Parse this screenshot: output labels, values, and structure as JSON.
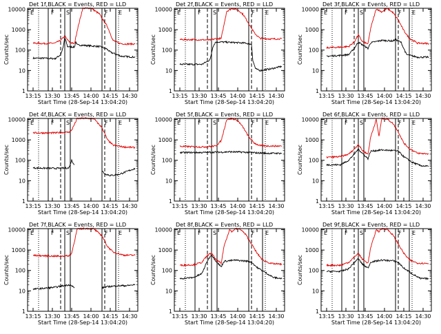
{
  "figure": {
    "ylabel": "Counts/sec",
    "xlabel": "Start Time (28-Sep-14 13:04:20)",
    "y_ticks": [
      "10000",
      "1000",
      "100",
      "10",
      "1"
    ],
    "x_ticks": [
      "13:15",
      "13:30",
      "13:45",
      "14:00",
      "14:15",
      "14:30"
    ],
    "colors": {
      "events": "#000000",
      "lld": "#e00000",
      "frame": "#000000"
    }
  },
  "chart_data": [
    {
      "type": "line",
      "title": "Det 1f,BLACK = Events, RED = LLD",
      "ylim": [
        1,
        10000
      ],
      "yscale": "log",
      "markers": [
        "E",
        "F",
        "S",
        "F",
        "E"
      ],
      "series": [
        {
          "name": "Events",
          "x": [
            4,
            12,
            20,
            24,
            26,
            27,
            29,
            34,
            35,
            36,
            52,
            57,
            60,
            68,
            78
          ],
          "y": [
            40,
            40,
            38,
            60,
            150,
            420,
            150,
            140,
            260,
            180,
            150,
            120,
            80,
            50,
            45
          ]
        },
        {
          "name": "LLD",
          "x": [
            4,
            12,
            20,
            24,
            27,
            30,
            34,
            36,
            40,
            46,
            52,
            58,
            62,
            66,
            70,
            78
          ],
          "y": [
            220,
            210,
            220,
            300,
            480,
            260,
            200,
            900,
            11000,
            11500,
            6000,
            1400,
            300,
            220,
            200,
            200
          ]
        }
      ]
    },
    {
      "type": "line",
      "title": "Det 2f,BLACK = Events, RED = LLD",
      "ylim": [
        1,
        10000
      ],
      "yscale": "log",
      "markers": [
        "E",
        "F",
        "S",
        "F",
        "E"
      ],
      "series": [
        {
          "name": "Events",
          "x": [
            4,
            20,
            24,
            26,
            28,
            30,
            34,
            40,
            52,
            56,
            57,
            59,
            62,
            70,
            78
          ],
          "y": [
            20,
            20,
            28,
            35,
            150,
            250,
            250,
            240,
            220,
            190,
            30,
            12,
            10,
            12,
            16
          ]
        },
        {
          "name": "LLD",
          "x": [
            4,
            20,
            26,
            30,
            34,
            38,
            42,
            46,
            50,
            54,
            58,
            62,
            70,
            78
          ],
          "y": [
            330,
            320,
            310,
            360,
            370,
            8000,
            11000,
            9500,
            5500,
            2000,
            700,
            380,
            350,
            360
          ]
        }
      ]
    },
    {
      "type": "line",
      "title": "Det 3f,BLACK = Events, RED = LLD",
      "ylim": [
        1,
        10000
      ],
      "yscale": "log",
      "markers": [
        "E",
        "F",
        "S",
        "F",
        "E"
      ],
      "series": [
        {
          "name": "Events",
          "x": [
            4,
            14,
            20,
            24,
            27,
            30,
            34,
            36,
            44,
            52,
            54,
            58,
            62,
            70,
            78
          ],
          "y": [
            50,
            55,
            60,
            120,
            250,
            180,
            120,
            230,
            300,
            280,
            330,
            240,
            60,
            45,
            45
          ]
        },
        {
          "name": "LLD",
          "x": [
            4,
            14,
            20,
            24,
            27,
            30,
            34,
            36,
            40,
            44,
            48,
            52,
            56,
            60,
            64,
            70,
            78
          ],
          "y": [
            130,
            140,
            150,
            250,
            550,
            260,
            200,
            1200,
            10500,
            7500,
            11000,
            7000,
            3000,
            900,
            380,
            220,
            210
          ]
        }
      ]
    },
    {
      "type": "line",
      "title": "Det 4f,BLACK = Events, RED = LLD",
      "ylim": [
        1,
        10000
      ],
      "yscale": "log",
      "markers": [
        "E",
        "F",
        "S",
        "F",
        "E"
      ],
      "series": [
        {
          "name": "Events",
          "x": [
            4,
            20,
            30,
            32,
            34
          ],
          "y": [
            42,
            40,
            42,
            100,
            60
          ]
        },
        {
          "name": "Events (recovered)",
          "x": [
            54,
            56,
            60,
            66,
            70,
            78
          ],
          "y": [
            30,
            22,
            18,
            20,
            25,
            40
          ]
        },
        {
          "name": "LLD",
          "x": [
            4,
            20,
            30,
            32,
            36,
            42,
            48,
            54,
            58,
            62,
            70,
            78
          ],
          "y": [
            2200,
            2200,
            2400,
            3000,
            11000,
            11500,
            11000,
            4000,
            1000,
            550,
            450,
            420
          ]
        }
      ]
    },
    {
      "type": "line",
      "title": "Det 5f,BLACK = Events, RED = LLD",
      "ylim": [
        1,
        10000
      ],
      "yscale": "log",
      "markers": [
        "E",
        "F",
        "S",
        "F",
        "E"
      ],
      "series": [
        {
          "name": "Events",
          "x": [
            4,
            20,
            30,
            34,
            40,
            50,
            56,
            60,
            68,
            78
          ],
          "y": [
            240,
            240,
            250,
            250,
            260,
            250,
            240,
            230,
            220,
            220
          ]
        },
        {
          "name": "LLD",
          "x": [
            4,
            20,
            30,
            34,
            38,
            42,
            46,
            50,
            54,
            58,
            62,
            70,
            78
          ],
          "y": [
            480,
            450,
            500,
            900,
            10000,
            11000,
            9000,
            4000,
            1400,
            700,
            520,
            500,
            500
          ]
        }
      ]
    },
    {
      "type": "line",
      "title": "Det 6f,BLACK = Events, RED = LLD",
      "ylim": [
        1,
        10000
      ],
      "yscale": "log",
      "markers": [
        "E",
        "F",
        "S",
        "F",
        "E"
      ],
      "series": [
        {
          "name": "Events",
          "x": [
            4,
            14,
            20,
            24,
            27,
            30,
            34,
            36,
            44,
            52,
            56,
            60,
            66,
            72,
            78
          ],
          "y": [
            60,
            60,
            100,
            200,
            350,
            220,
            120,
            280,
            320,
            300,
            280,
            150,
            80,
            55,
            50
          ]
        },
        {
          "name": "LLD",
          "x": [
            4,
            14,
            20,
            24,
            27,
            30,
            34,
            36,
            40,
            42,
            44,
            48,
            52,
            56,
            60,
            64,
            70,
            78
          ],
          "y": [
            140,
            150,
            200,
            350,
            600,
            300,
            200,
            1400,
            10000,
            1500,
            11000,
            10500,
            6500,
            2500,
            700,
            380,
            220,
            210
          ]
        }
      ]
    },
    {
      "type": "line",
      "title": "Det 7f,BLACK = Events, RED = LLD",
      "ylim": [
        1,
        10000
      ],
      "yscale": "log",
      "markers": [
        "E",
        "F",
        "S",
        "F",
        "E"
      ],
      "series": [
        {
          "name": "Events",
          "x": [
            4,
            20,
            30,
            34
          ],
          "y": [
            12,
            15,
            20,
            15
          ]
        },
        {
          "name": "Events (recovered)",
          "x": [
            54,
            58,
            66,
            72,
            78
          ],
          "y": [
            14,
            16,
            18,
            18,
            20
          ]
        },
        {
          "name": "LLD",
          "x": [
            4,
            20,
            30,
            32,
            36,
            42,
            48,
            54,
            58,
            62,
            70,
            78
          ],
          "y": [
            550,
            500,
            520,
            700,
            10500,
            11500,
            11000,
            5000,
            1500,
            800,
            560,
            560
          ]
        }
      ]
    },
    {
      "type": "line",
      "title": "Det 8f,BLACK = Events, RED = LLD",
      "ylim": [
        1,
        10000
      ],
      "yscale": "log",
      "markers": [
        "E",
        "F",
        "S",
        "F",
        "E"
      ],
      "series": [
        {
          "name": "Events",
          "x": [
            4,
            14,
            20,
            24,
            27,
            30,
            34,
            36,
            44,
            52,
            56,
            60,
            66,
            72,
            78
          ],
          "y": [
            40,
            45,
            70,
            300,
            600,
            300,
            150,
            280,
            320,
            290,
            260,
            140,
            80,
            45,
            40
          ]
        },
        {
          "name": "LLD",
          "x": [
            4,
            14,
            20,
            24,
            27,
            30,
            34,
            36,
            40,
            42,
            44,
            48,
            52,
            56,
            60,
            64,
            70,
            78
          ],
          "y": [
            180,
            190,
            250,
            550,
            700,
            350,
            220,
            1500,
            10000,
            8000,
            11000,
            10500,
            5500,
            2000,
            700,
            330,
            220,
            200
          ]
        }
      ]
    },
    {
      "type": "line",
      "title": "Det 9f,BLACK = Events, RED = LLD",
      "ylim": [
        1,
        10000
      ],
      "yscale": "log",
      "markers": [
        "E",
        "F",
        "S",
        "F",
        "E"
      ],
      "series": [
        {
          "name": "Events",
          "x": [
            4,
            14,
            20,
            24,
            27,
            30,
            34,
            36,
            44,
            52,
            56,
            60,
            66,
            72,
            78
          ],
          "y": [
            90,
            90,
            120,
            250,
            380,
            200,
            130,
            260,
            320,
            300,
            250,
            130,
            70,
            40,
            40
          ]
        },
        {
          "name": "LLD",
          "x": [
            4,
            14,
            20,
            24,
            27,
            30,
            34,
            36,
            40,
            42,
            44,
            48,
            52,
            56,
            60,
            64,
            70,
            78
          ],
          "y": [
            180,
            180,
            250,
            450,
            700,
            350,
            230,
            1300,
            10000,
            8000,
            11000,
            10500,
            5500,
            2000,
            700,
            330,
            230,
            220
          ]
        }
      ]
    }
  ]
}
